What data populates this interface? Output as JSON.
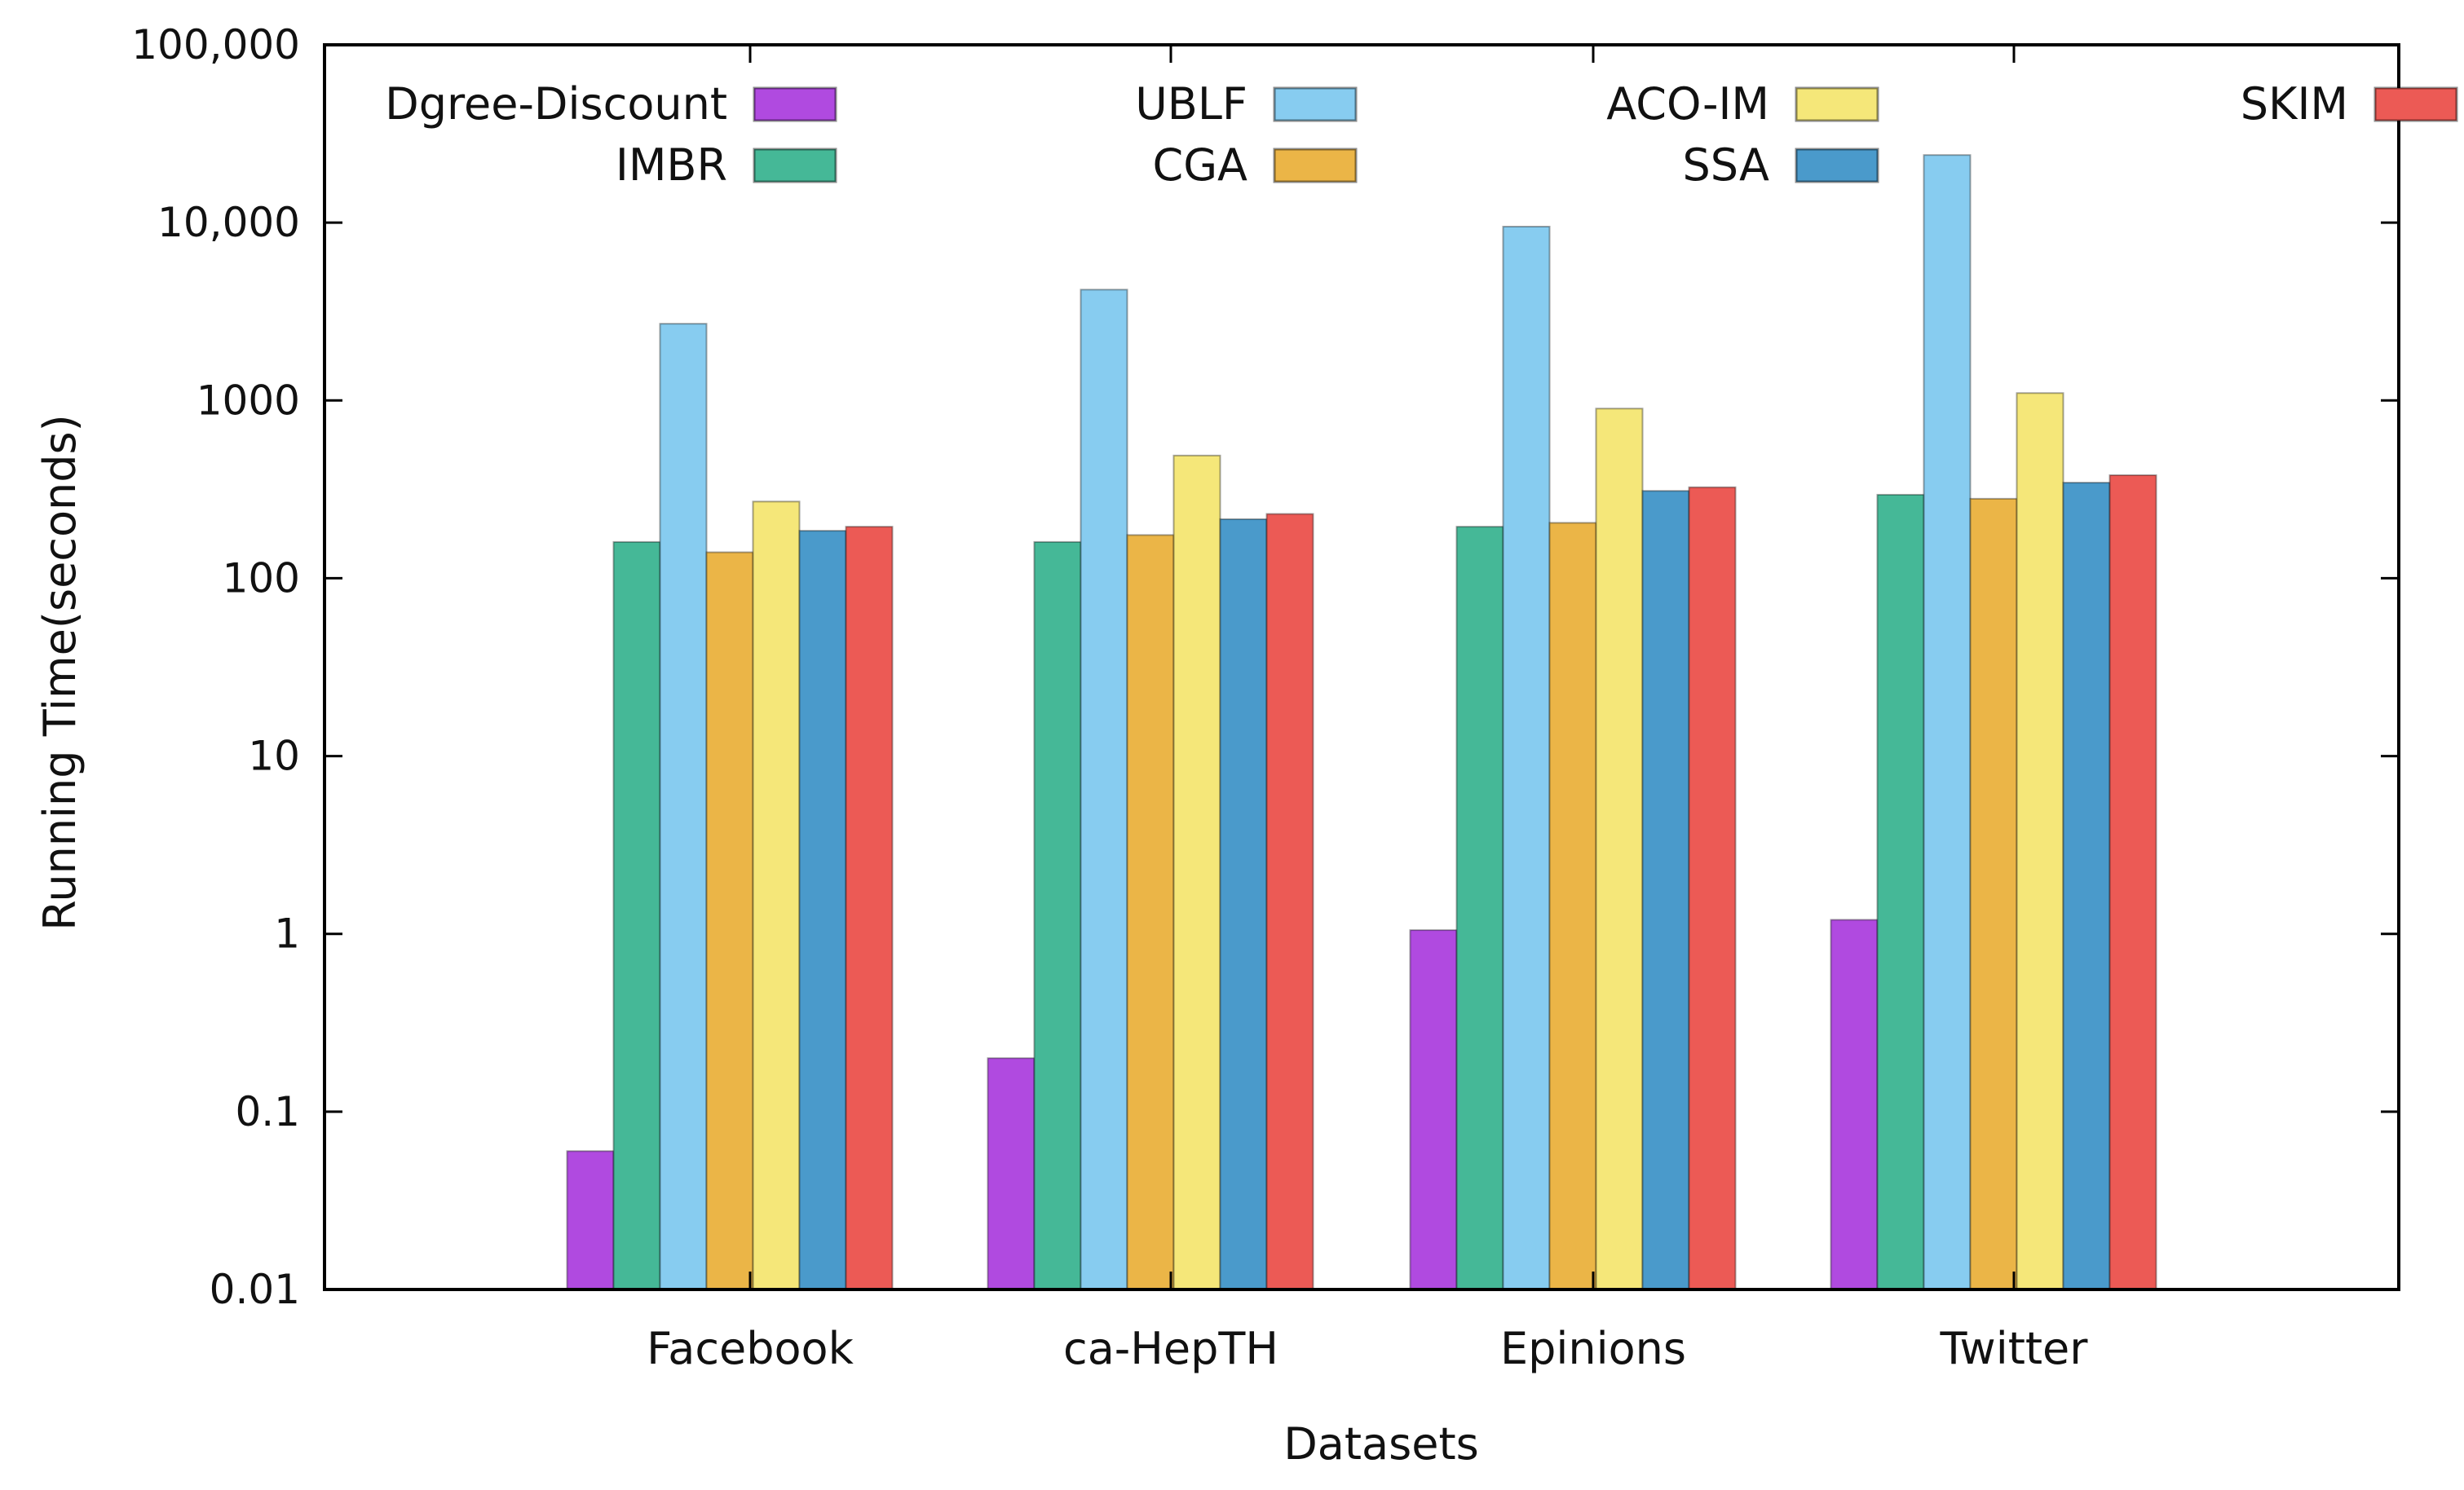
{
  "chart_data": {
    "type": "bar",
    "title": "",
    "xlabel": "Datasets",
    "ylabel": "Running Time(seconds)",
    "yscale": "log",
    "ylim": [
      0.01,
      100000
    ],
    "yticks": [
      0.01,
      0.1,
      1,
      10,
      100,
      1000,
      10000,
      100000
    ],
    "ytick_labels": [
      "0.01",
      "0.1",
      "1",
      "10",
      "100",
      "1000",
      "10,000",
      "100,000"
    ],
    "categories": [
      "Facebook",
      "ca-HepTH",
      "Epinions",
      "Twitter"
    ],
    "legend_position": "top",
    "grid": false,
    "series": [
      {
        "name": "Dgree-Discount",
        "color": "#b04ae0",
        "values": [
          0.06,
          0.2,
          1.05,
          1.2
        ]
      },
      {
        "name": "IMBR",
        "color": "#45b897",
        "values": [
          160,
          160,
          195,
          295
        ]
      },
      {
        "name": "UBLF",
        "color": "#87ccf0",
        "values": [
          2700,
          4200,
          9500,
          24000
        ]
      },
      {
        "name": "CGA",
        "color": "#ebb547",
        "values": [
          140,
          175,
          205,
          280
        ]
      },
      {
        "name": "ACO-IM",
        "color": "#f5e779",
        "values": [
          270,
          490,
          900,
          1100
        ]
      },
      {
        "name": "SSA",
        "color": "#4a9acb",
        "values": [
          185,
          215,
          310,
          345
        ]
      },
      {
        "name": "SKIM",
        "color": "#ec5a55",
        "values": [
          195,
          230,
          325,
          380
        ]
      }
    ],
    "legend_rows": [
      [
        "Dgree-Discount",
        "UBLF",
        "ACO-IM",
        "SKIM"
      ],
      [
        "IMBR",
        "CGA",
        "SSA"
      ]
    ]
  }
}
